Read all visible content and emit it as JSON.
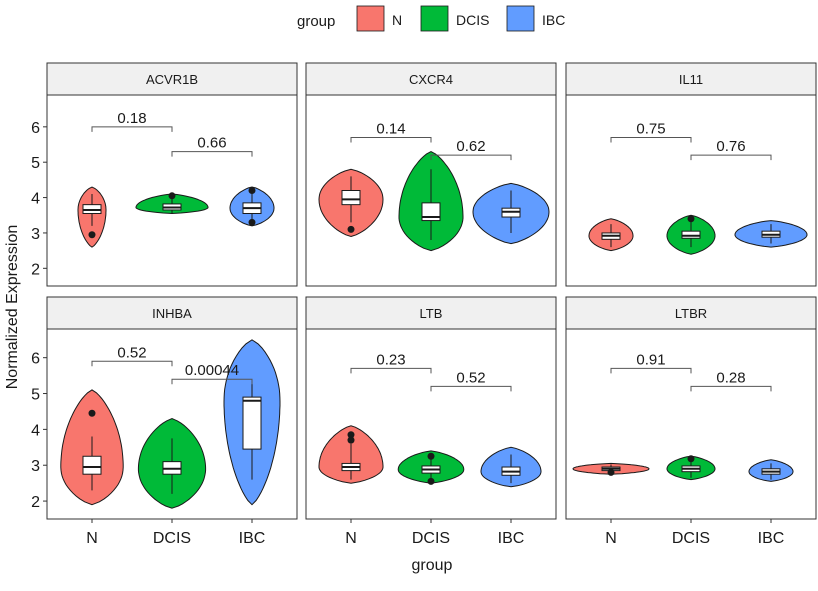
{
  "legend": {
    "title": "group",
    "position": "top",
    "items": [
      {
        "label": "N",
        "color": "#F8766D"
      },
      {
        "label": "DCIS",
        "color": "#00BA38"
      },
      {
        "label": "IBC",
        "color": "#619CFF"
      }
    ]
  },
  "axes": {
    "xlabel": "group",
    "ylabel": "Normalized Expression"
  },
  "chart_data": {
    "type": "violin",
    "categories": [
      "N",
      "DCIS",
      "IBC"
    ],
    "facet_rows": 2,
    "facet_cols": 3,
    "row_yticks": [
      [
        2,
        3,
        4,
        5,
        6
      ],
      [
        2,
        3,
        4,
        5,
        6
      ]
    ],
    "row_ylim": [
      [
        1.5,
        6.9
      ],
      [
        1.5,
        6.8
      ]
    ],
    "grid": false,
    "panels": [
      {
        "title": "ACVR1B",
        "comparisons": [
          {
            "from": "N",
            "to": "DCIS",
            "p": "0.18",
            "y": 6.0
          },
          {
            "from": "DCIS",
            "to": "IBC",
            "p": "0.66",
            "y": 5.3
          }
        ],
        "groups": [
          {
            "group": "N",
            "min": 2.6,
            "max": 4.3,
            "width": 0.35,
            "q1": 3.55,
            "median": 3.65,
            "q3": 3.8,
            "wlo": 3.2,
            "whi": 4.1,
            "outliers": [
              2.95
            ]
          },
          {
            "group": "DCIS",
            "min": 3.55,
            "max": 4.1,
            "width": 0.9,
            "q1": 3.65,
            "median": 3.72,
            "q3": 3.82,
            "wlo": 3.55,
            "whi": 4.05,
            "outliers": [
              4.05
            ]
          },
          {
            "group": "IBC",
            "min": 3.2,
            "max": 4.3,
            "width": 0.55,
            "q1": 3.55,
            "median": 3.7,
            "q3": 3.85,
            "wlo": 3.3,
            "whi": 4.2,
            "outliers": [
              4.2,
              3.3
            ]
          }
        ]
      },
      {
        "title": "CXCR4",
        "comparisons": [
          {
            "from": "N",
            "to": "DCIS",
            "p": "0.14",
            "y": 5.7
          },
          {
            "from": "DCIS",
            "to": "IBC",
            "p": "0.62",
            "y": 5.2
          }
        ],
        "groups": [
          {
            "group": "N",
            "min": 2.9,
            "max": 4.8,
            "width": 0.8,
            "q1": 3.8,
            "median": 3.95,
            "q3": 4.2,
            "wlo": 3.3,
            "whi": 4.6,
            "outliers": [
              3.1
            ]
          },
          {
            "group": "DCIS",
            "min": 2.5,
            "max": 5.3,
            "width": 0.8,
            "q1": 3.35,
            "median": 3.45,
            "q3": 3.85,
            "wlo": 2.8,
            "whi": 4.8,
            "outliers": []
          },
          {
            "group": "IBC",
            "min": 2.7,
            "max": 4.4,
            "width": 0.95,
            "q1": 3.45,
            "median": 3.6,
            "q3": 3.7,
            "wlo": 3.0,
            "whi": 4.2,
            "outliers": []
          }
        ]
      },
      {
        "title": "IL11",
        "comparisons": [
          {
            "from": "N",
            "to": "DCIS",
            "p": "0.75",
            "y": 5.7
          },
          {
            "from": "DCIS",
            "to": "IBC",
            "p": "0.76",
            "y": 5.2
          }
        ],
        "groups": [
          {
            "group": "N",
            "min": 2.5,
            "max": 3.4,
            "width": 0.55,
            "q1": 2.82,
            "median": 2.92,
            "q3": 3.0,
            "wlo": 2.6,
            "whi": 3.25,
            "outliers": []
          },
          {
            "group": "DCIS",
            "min": 2.4,
            "max": 3.5,
            "width": 0.6,
            "q1": 2.85,
            "median": 2.92,
            "q3": 3.05,
            "wlo": 2.6,
            "whi": 3.35,
            "outliers": [
              3.4
            ]
          },
          {
            "group": "IBC",
            "min": 2.6,
            "max": 3.35,
            "width": 0.9,
            "q1": 2.88,
            "median": 2.95,
            "q3": 3.05,
            "wlo": 2.7,
            "whi": 3.25,
            "outliers": []
          }
        ]
      },
      {
        "title": "INHBA",
        "comparisons": [
          {
            "from": "N",
            "to": "DCIS",
            "p": "0.52",
            "y": 5.9
          },
          {
            "from": "DCIS",
            "to": "IBC",
            "p": "0.00044",
            "y": 5.4
          }
        ],
        "groups": [
          {
            "group": "N",
            "min": 1.9,
            "max": 5.1,
            "width": 0.78,
            "q1": 2.75,
            "median": 2.95,
            "q3": 3.25,
            "wlo": 2.3,
            "whi": 3.8,
            "outliers": [
              4.45
            ]
          },
          {
            "group": "DCIS",
            "min": 1.8,
            "max": 4.3,
            "width": 0.84,
            "q1": 2.75,
            "median": 2.9,
            "q3": 3.1,
            "wlo": 2.2,
            "whi": 3.75,
            "outliers": []
          },
          {
            "group": "IBC",
            "min": 1.9,
            "max": 6.5,
            "width": 0.7,
            "q1": 3.45,
            "median": 4.8,
            "q3": 4.9,
            "wlo": 2.6,
            "whi": 5.4,
            "outliers": []
          }
        ]
      },
      {
        "title": "LTB",
        "comparisons": [
          {
            "from": "N",
            "to": "DCIS",
            "p": "0.23",
            "y": 5.7
          },
          {
            "from": "DCIS",
            "to": "IBC",
            "p": "0.52",
            "y": 5.2
          }
        ],
        "groups": [
          {
            "group": "N",
            "min": 2.5,
            "max": 4.1,
            "width": 0.8,
            "q1": 2.85,
            "median": 2.95,
            "q3": 3.05,
            "wlo": 2.6,
            "whi": 3.6,
            "outliers": [
              3.85,
              3.7
            ]
          },
          {
            "group": "DCIS",
            "min": 2.5,
            "max": 3.4,
            "width": 0.82,
            "q1": 2.78,
            "median": 2.88,
            "q3": 2.98,
            "wlo": 2.55,
            "whi": 3.25,
            "outliers": [
              2.55,
              3.25
            ]
          },
          {
            "group": "IBC",
            "min": 2.4,
            "max": 3.5,
            "width": 0.75,
            "q1": 2.72,
            "median": 2.82,
            "q3": 2.95,
            "wlo": 2.5,
            "whi": 3.3,
            "outliers": []
          }
        ]
      },
      {
        "title": "LTBR",
        "comparisons": [
          {
            "from": "N",
            "to": "DCIS",
            "p": "0.91",
            "y": 5.7
          },
          {
            "from": "DCIS",
            "to": "IBC",
            "p": "0.28",
            "y": 5.2
          }
        ],
        "groups": [
          {
            "group": "N",
            "min": 2.75,
            "max": 3.05,
            "width": 0.95,
            "q1": 2.85,
            "median": 2.9,
            "q3": 2.95,
            "wlo": 2.78,
            "whi": 3.02,
            "outliers": [
              2.8
            ]
          },
          {
            "group": "DCIS",
            "min": 2.6,
            "max": 3.25,
            "width": 0.6,
            "q1": 2.82,
            "median": 2.9,
            "q3": 2.98,
            "wlo": 2.65,
            "whi": 3.15,
            "outliers": [
              3.18
            ]
          },
          {
            "group": "IBC",
            "min": 2.55,
            "max": 3.15,
            "width": 0.55,
            "q1": 2.75,
            "median": 2.82,
            "q3": 2.9,
            "wlo": 2.6,
            "whi": 3.05,
            "outliers": []
          }
        ]
      }
    ]
  }
}
